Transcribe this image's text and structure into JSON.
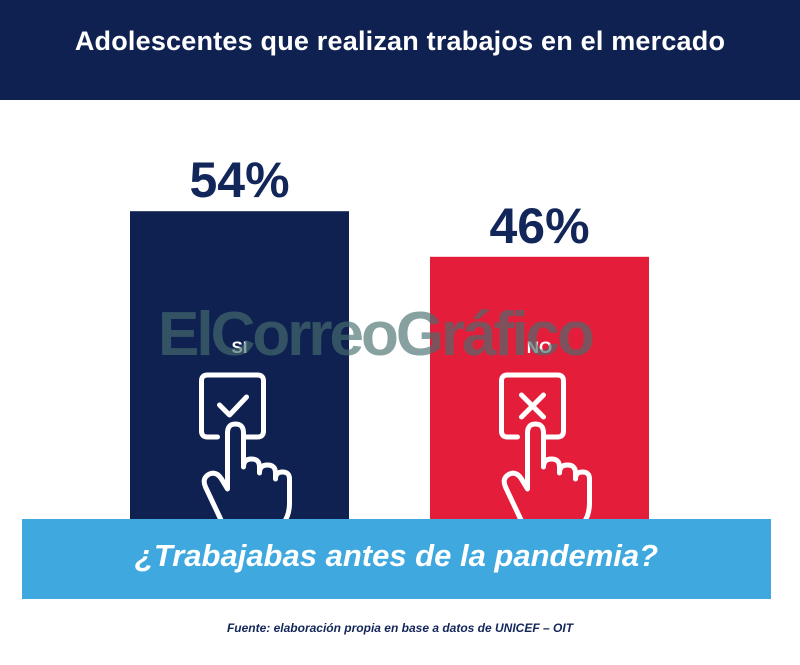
{
  "chart_data": {
    "type": "bar",
    "title": "Adolescentes que realizan trabajos en el mercado",
    "subtitle": "¿Trabajabas antes de la pandemia?",
    "categories": [
      "SI",
      "NO"
    ],
    "values": [
      54,
      46
    ],
    "value_labels": [
      "54%",
      "46%"
    ],
    "bar_colors": [
      "#0f2150",
      "#e41e3a"
    ],
    "icons": [
      "hand-checkbox-check-icon",
      "hand-checkbox-x-icon"
    ],
    "ylim": [
      0,
      100
    ],
    "grid": false,
    "legend": "none"
  },
  "source": "Fuente: elaboración propia en base a datos de UNICEF – OIT",
  "watermark": "ElCorreoGráfico",
  "colors": {
    "header_bg": "#0f2150",
    "band_bg": "#3fa9df",
    "value_text": "#132659"
  }
}
